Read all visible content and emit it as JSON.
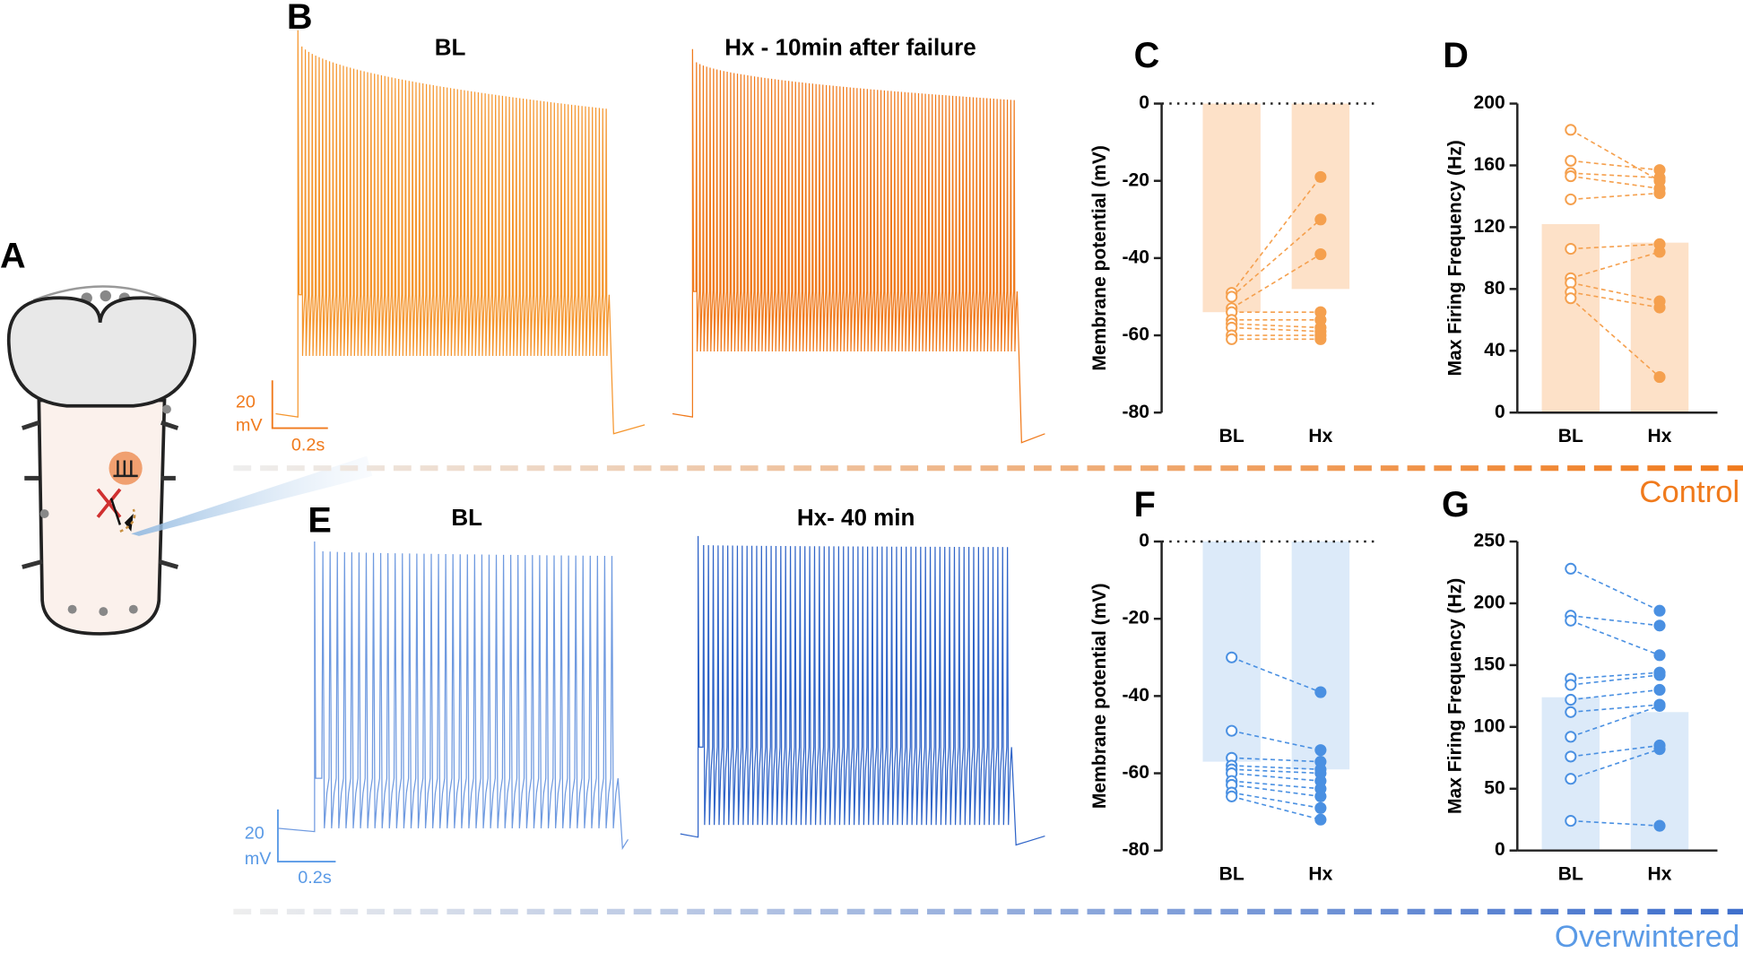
{
  "figure": {
    "panel_labels": [
      "A",
      "B",
      "C",
      "D",
      "E",
      "F",
      "G"
    ],
    "traces": [
      {
        "titles": [
          "BL",
          "Hx - 10min after failure"
        ],
        "scale_y": "20",
        "scale_unit": "mV",
        "scale_x": "0.2s"
      },
      {
        "titles": [
          "BL",
          "Hx- 40 min"
        ],
        "scale_y": "20",
        "scale_unit": "mV",
        "scale_x": "0.2s"
      }
    ],
    "groups": [
      "Control",
      "Overwintered"
    ]
  },
  "chart_data": [
    {
      "type": "paired-bar",
      "y_label": "Membrane potential (mV)",
      "categories": [
        "BL",
        "Hx"
      ],
      "values": [
        -54,
        -48
      ],
      "color": "#f5a04e",
      "bar_color": "#fde1c8",
      "zero_line": true,
      "ylim": [
        -80,
        0
      ],
      "yticks": [
        0,
        -20,
        -40,
        -60,
        -80
      ],
      "paired": [
        [
          -49,
          -19
        ],
        [
          -50,
          -30
        ],
        [
          -53,
          -39
        ],
        [
          -54,
          -54
        ],
        [
          -56,
          -56
        ],
        [
          -57,
          -58
        ],
        [
          -58,
          -59
        ],
        [
          -60,
          -60
        ],
        [
          -61,
          -61
        ]
      ]
    },
    {
      "type": "paired-bar",
      "y_label": "Max Firing Frequency (Hz)",
      "categories": [
        "BL",
        "Hx"
      ],
      "values": [
        122,
        110
      ],
      "color": "#f5a04e",
      "bar_color": "#fde1c8",
      "zero_line": false,
      "ylim": [
        0,
        200
      ],
      "yticks": [
        0,
        40,
        80,
        120,
        160,
        200
      ],
      "paired": [
        [
          183,
          150
        ],
        [
          163,
          157
        ],
        [
          155,
          152
        ],
        [
          153,
          145
        ],
        [
          138,
          142
        ],
        [
          106,
          109
        ],
        [
          87,
          104
        ],
        [
          84,
          72
        ],
        [
          78,
          68
        ],
        [
          74,
          23
        ]
      ]
    },
    {
      "type": "paired-bar",
      "y_label": "Membrane potential (mV)",
      "categories": [
        "BL",
        "Hx"
      ],
      "values": [
        -57,
        -59
      ],
      "color": "#4a90e2",
      "bar_color": "#dceaf9",
      "zero_line": true,
      "ylim": [
        -80,
        0
      ],
      "yticks": [
        0,
        -20,
        -40,
        -60,
        -80
      ],
      "paired": [
        [
          -30,
          -39
        ],
        [
          -49,
          -54
        ],
        [
          -56,
          -57
        ],
        [
          -58,
          -59
        ],
        [
          -59,
          -60
        ],
        [
          -60,
          -62
        ],
        [
          -62,
          -64
        ],
        [
          -63,
          -66
        ],
        [
          -65,
          -69
        ],
        [
          -66,
          -72
        ]
      ]
    },
    {
      "type": "paired-bar",
      "y_label": "Max Firing Frequency (Hz)",
      "categories": [
        "BL",
        "Hx"
      ],
      "values": [
        124,
        112
      ],
      "color": "#4a90e2",
      "bar_color": "#dceaf9",
      "zero_line": false,
      "ylim": [
        0,
        250
      ],
      "yticks": [
        0,
        50,
        100,
        150,
        200,
        250
      ],
      "paired": [
        [
          228,
          194
        ],
        [
          190,
          182
        ],
        [
          186,
          158
        ],
        [
          139,
          144
        ],
        [
          134,
          142
        ],
        [
          122,
          130
        ],
        [
          112,
          118
        ],
        [
          92,
          117
        ],
        [
          76,
          85
        ],
        [
          58,
          82
        ],
        [
          24,
          20
        ]
      ]
    }
  ]
}
